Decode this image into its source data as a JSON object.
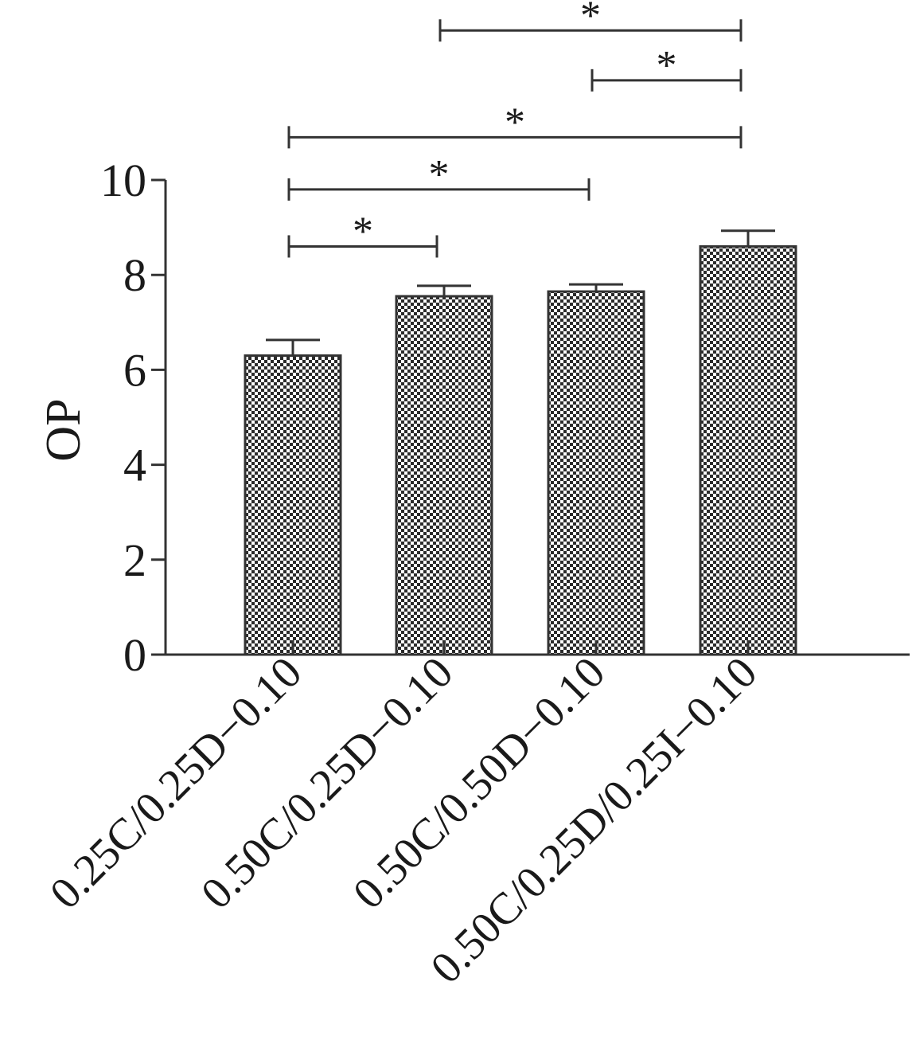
{
  "chart_data": {
    "type": "bar",
    "title": "",
    "xlabel": "",
    "ylabel": "OP",
    "ylim": [
      0,
      10
    ],
    "yticks": [
      "0",
      "2",
      "4",
      "6",
      "8",
      "10"
    ],
    "grid": false,
    "categories": [
      "0.25C/0.25D−0.10",
      "0.50C/0.25D−0.10",
      "0.50C/0.50D−0.10",
      "0.50C/0.25D/0.25I−0.10"
    ],
    "values": [
      6.3,
      7.55,
      7.65,
      8.6
    ],
    "errors": [
      0.33,
      0.22,
      0.15,
      0.33
    ],
    "significance": [
      {
        "from": 0,
        "to": 1,
        "label": "*",
        "y": 8.6
      },
      {
        "from": 0,
        "to": 2,
        "label": "*",
        "y": 9.8
      },
      {
        "from": 0,
        "to": 3,
        "label": "*",
        "y": 10.9
      },
      {
        "from": 2,
        "to": 3,
        "label": "*",
        "y": 12.1
      },
      {
        "from": 1,
        "to": 3,
        "label": "*",
        "y": 13.15
      }
    ],
    "bar_pattern": "checkerboard",
    "colors": {
      "dark": "#2b2b2b",
      "light": "#ffffff",
      "axis": "#333333"
    }
  }
}
